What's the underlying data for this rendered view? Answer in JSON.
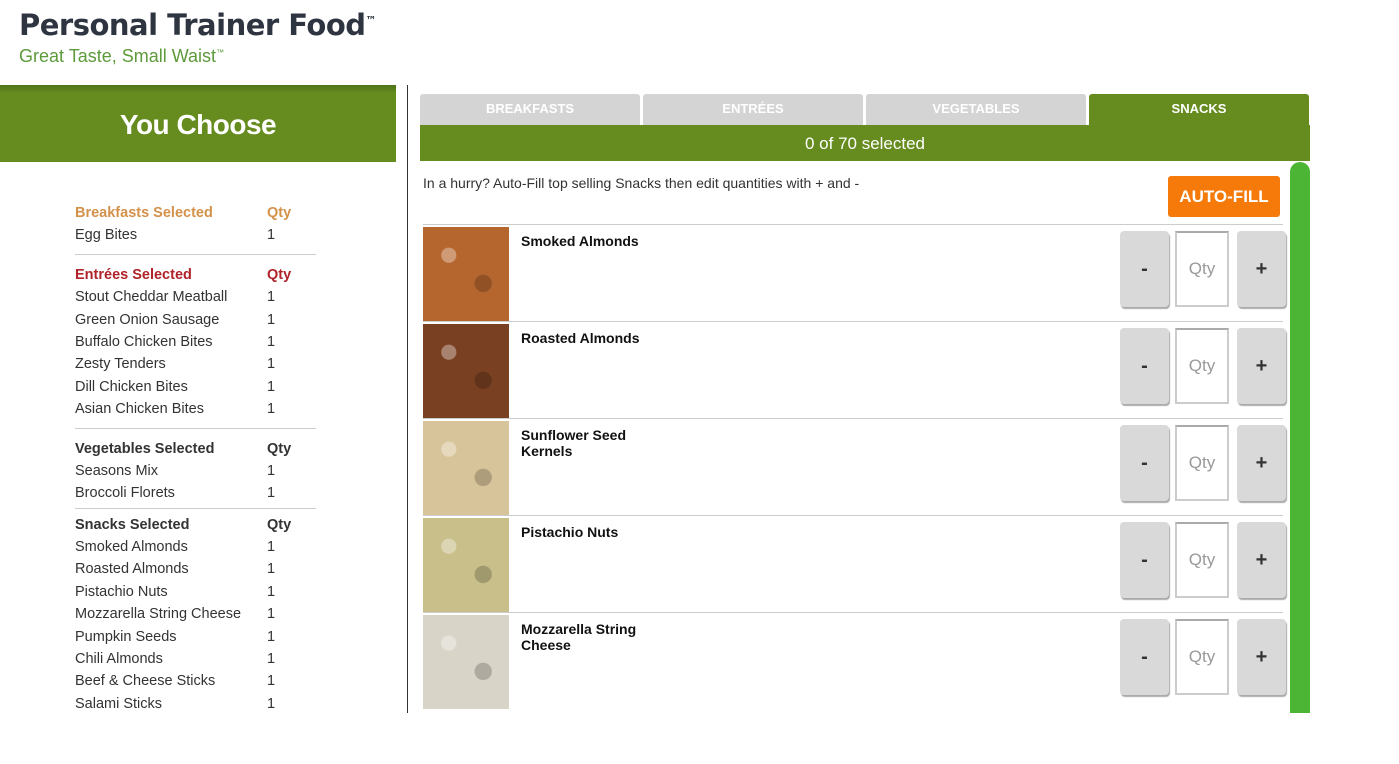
{
  "logo": {
    "title": "Personal Trainer Food",
    "title_tm": "™",
    "tagline": "Great Taste, Small Waist",
    "tagline_tm": "™"
  },
  "you_choose": "You Choose",
  "summary": [
    {
      "header": "Breakfasts Selected",
      "qty_label": "Qty",
      "color": "#d4914a",
      "items": [
        {
          "name": "Egg Bites",
          "qty": "1"
        }
      ]
    },
    {
      "header": "Entrées Selected",
      "qty_label": "Qty",
      "color": "#b0232a",
      "items": [
        {
          "name": "Stout Cheddar Meatball",
          "qty": "1"
        },
        {
          "name": "Green Onion Sausage",
          "qty": "1"
        },
        {
          "name": "Buffalo Chicken Bites",
          "qty": "1"
        },
        {
          "name": "Zesty Tenders",
          "qty": "1"
        },
        {
          "name": "Dill Chicken Bites",
          "qty": "1"
        },
        {
          "name": "Asian Chicken Bites",
          "qty": "1"
        }
      ]
    },
    {
      "header": "Vegetables Selected",
      "qty_label": "Qty",
      "color": "#333333",
      "items": [
        {
          "name": "Seasons Mix",
          "qty": "1"
        },
        {
          "name": "Broccoli Florets",
          "qty": "1"
        }
      ]
    },
    {
      "header": "Snacks Selected",
      "qty_label": "Qty",
      "color": "#333333",
      "items": [
        {
          "name": "Smoked Almonds",
          "qty": "1"
        },
        {
          "name": "Roasted Almonds",
          "qty": "1"
        },
        {
          "name": "Pistachio Nuts",
          "qty": "1"
        },
        {
          "name": "Mozzarella String Cheese",
          "qty": "1"
        },
        {
          "name": "Pumpkin Seeds",
          "qty": "1"
        },
        {
          "name": "Chili Almonds",
          "qty": "1"
        },
        {
          "name": "Beef & Cheese Sticks",
          "qty": "1"
        },
        {
          "name": "Salami Sticks",
          "qty": "1"
        }
      ]
    }
  ],
  "tabs": [
    {
      "label": "BREAKFASTS",
      "active": false
    },
    {
      "label": "ENTRÉES",
      "active": false
    },
    {
      "label": "VEGETABLES",
      "active": false
    },
    {
      "label": "SNACKS",
      "active": true
    }
  ],
  "selected_count": "0 of 70 selected",
  "hint": "In a hurry? Auto-Fill top selling Snacks then edit quantities with + and -",
  "autofill_label": "AUTO-FILL",
  "products": [
    {
      "name": "Smoked Almonds",
      "color": "#b5652e",
      "minus": "-",
      "plus": "+",
      "qty_placeholder": "Qty"
    },
    {
      "name": "Roasted Almonds",
      "color": "#7a4022",
      "minus": "-",
      "plus": "+",
      "qty_placeholder": "Qty"
    },
    {
      "name": "Sunflower Seed Kernels",
      "color": "#d8c49a",
      "minus": "-",
      "plus": "+",
      "qty_placeholder": "Qty"
    },
    {
      "name": "Pistachio Nuts",
      "color": "#c9bf8a",
      "minus": "-",
      "plus": "+",
      "qty_placeholder": "Qty"
    },
    {
      "name": "Mozzarella String Cheese",
      "color": "#d9d4c8",
      "minus": "-",
      "plus": "+",
      "qty_placeholder": "Qty"
    }
  ],
  "colors": {
    "brand_green": "#668c1f",
    "autofill_orange": "#f57a0a",
    "scrollbar": "#4cb535"
  }
}
